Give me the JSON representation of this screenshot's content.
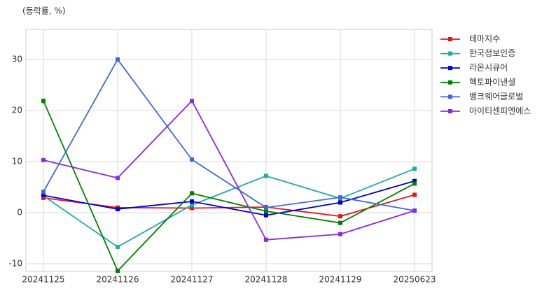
{
  "chart_data": {
    "type": "line",
    "y_label": "(등락률, %)",
    "categories": [
      "20241125",
      "20241126",
      "20241127",
      "20241128",
      "20241129",
      "20250623"
    ],
    "series": [
      {
        "name": "테마지수",
        "color": "#e8161b",
        "values": [
          2.9,
          1.0,
          0.9,
          1.1,
          -0.7,
          3.5
        ]
      },
      {
        "name": "한국정보인증",
        "color": "#22aaa8",
        "values": [
          3.3,
          -6.7,
          1.5,
          7.2,
          2.8,
          8.6
        ]
      },
      {
        "name": "라온시큐어",
        "color": "#0000cd",
        "values": [
          3.4,
          0.7,
          2.2,
          -0.5,
          2.0,
          6.2
        ]
      },
      {
        "name": "헥토파이낸셜",
        "color": "#008000",
        "values": [
          21.9,
          -11.4,
          3.8,
          0.3,
          -2.0,
          5.7
        ]
      },
      {
        "name": "뱅크웨어글로벌",
        "color": "#4169d6",
        "values": [
          4.1,
          30.0,
          10.4,
          1.0,
          3.0,
          0.4
        ]
      },
      {
        "name": "아이티센피엔에스",
        "color": "#8a2be2",
        "values": [
          10.3,
          6.8,
          21.9,
          -5.3,
          -4.2,
          0.4
        ]
      }
    ],
    "ylim": [
      -11.5,
      35.9
    ],
    "yticks": [
      -10,
      0,
      10,
      20,
      30
    ],
    "grid": true,
    "legend": "right"
  }
}
